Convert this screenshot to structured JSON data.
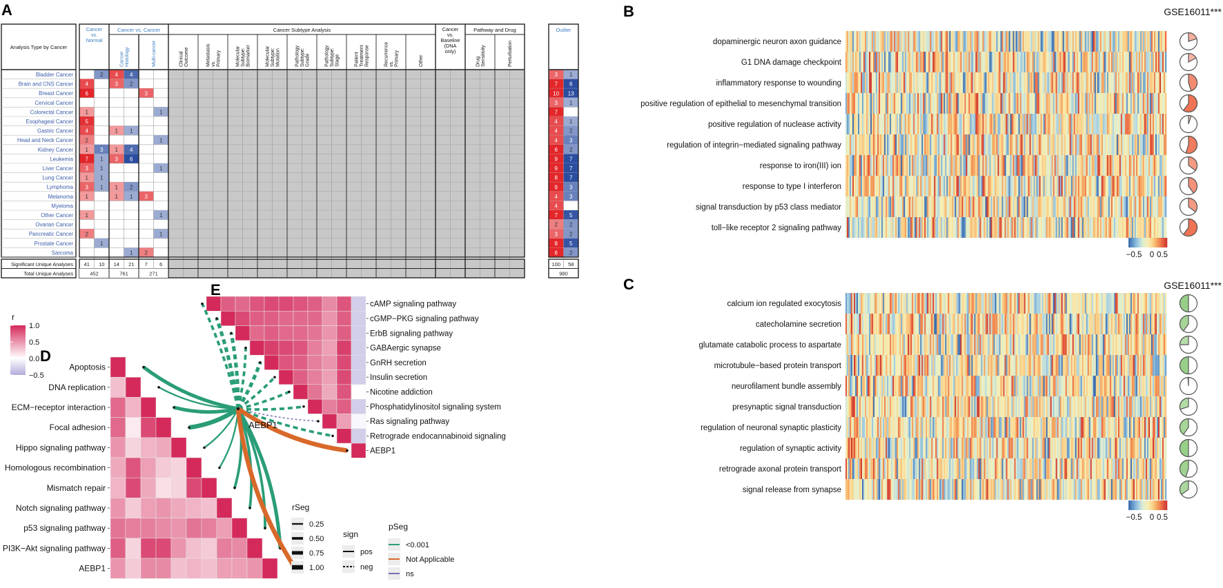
{
  "panel_labels": {
    "a": "A",
    "b": "B",
    "c": "C",
    "d": "D",
    "e": "E"
  },
  "chart_data": [
    {
      "panel": "A",
      "type": "table",
      "row_header": "Analysis Type by Cancer",
      "group_headers": {
        "cvn": "Cancer vs. Normal",
        "cvc": "Cancer vs. Cancer",
        "subtype": "Cancer Subtype Analysis",
        "baseline": "Cancer vs. Baseline (DNA only)",
        "pathway": "Pathway and Drug",
        "outlier": "Outlier"
      },
      "sub_headers": {
        "cvc": [
          "Cancer Histology",
          "Multi-cancer"
        ],
        "subtype": [
          "Clinical Outcome",
          "Metastasis vs. Primary",
          "Molecular Subtype: Biomarker",
          "Molecular Subtype: Mutation",
          "Pathology Subtype: Grade",
          "Pathology Subtype: Stage",
          "Patient Treatment Response",
          "Recurrence vs. Primary",
          "Other"
        ],
        "pathway": [
          "Drug Sensitivity",
          "Perturbation"
        ]
      },
      "rows": [
        {
          "cancer": "Bladder Cancer",
          "cvn": [
            null,
            2
          ],
          "histology": [
            4,
            4
          ],
          "multi": [
            null,
            null
          ],
          "outlier": [
            3,
            1
          ]
        },
        {
          "cancer": "Brain and CNS Cancer",
          "cvn": [
            4,
            null
          ],
          "histology": [
            3,
            2
          ],
          "multi": [
            null,
            null
          ],
          "outlier": [
            7,
            6
          ]
        },
        {
          "cancer": "Breast Cancer",
          "cvn": [
            6,
            null
          ],
          "histology": [
            null,
            null
          ],
          "multi": [
            3,
            null
          ],
          "outlier": [
            10,
            13
          ]
        },
        {
          "cancer": "Cervical Cancer",
          "cvn": [
            null,
            null
          ],
          "histology": [
            null,
            null
          ],
          "multi": [
            null,
            null
          ],
          "outlier": [
            3,
            1
          ]
        },
        {
          "cancer": "Colorectal Cancer",
          "cvn": [
            1,
            null
          ],
          "histology": [
            null,
            null
          ],
          "multi": [
            null,
            1
          ],
          "outlier": [
            7,
            null
          ]
        },
        {
          "cancer": "Esophageal Cancer",
          "cvn": [
            5,
            null
          ],
          "histology": [
            null,
            null
          ],
          "multi": [
            null,
            null
          ],
          "outlier": [
            4,
            1
          ]
        },
        {
          "cancer": "Gastric Cancer",
          "cvn": [
            4,
            null
          ],
          "histology": [
            1,
            1
          ],
          "multi": [
            null,
            null
          ],
          "outlier": [
            4,
            2
          ]
        },
        {
          "cancer": "Head and Neck Cancer",
          "cvn": [
            2,
            null
          ],
          "histology": [
            null,
            null
          ],
          "multi": [
            null,
            1
          ],
          "outlier": [
            4,
            3
          ]
        },
        {
          "cancer": "Kidney Cancer",
          "cvn": [
            1,
            3
          ],
          "histology": [
            1,
            4
          ],
          "multi": [
            null,
            null
          ],
          "outlier": [
            6,
            2
          ]
        },
        {
          "cancer": "Leukemia",
          "cvn": [
            7,
            1
          ],
          "histology": [
            3,
            6
          ],
          "multi": [
            null,
            null
          ],
          "outlier": [
            9,
            7
          ]
        },
        {
          "cancer": "Liver Cancer",
          "cvn": [
            3,
            1
          ],
          "histology": [
            null,
            null
          ],
          "multi": [
            null,
            1
          ],
          "outlier": [
            9,
            7
          ]
        },
        {
          "cancer": "Lung Cancer",
          "cvn": [
            1,
            1
          ],
          "histology": [
            null,
            null
          ],
          "multi": [
            null,
            null
          ],
          "outlier": [
            8,
            7
          ]
        },
        {
          "cancer": "Lymphoma",
          "cvn": [
            3,
            1
          ],
          "histology": [
            1,
            2
          ],
          "multi": [
            null,
            null
          ],
          "outlier": [
            9,
            3
          ]
        },
        {
          "cancer": "Melanoma",
          "cvn": [
            1,
            null
          ],
          "histology": [
            1,
            1
          ],
          "multi": [
            3,
            null
          ],
          "outlier": [
            4,
            3
          ]
        },
        {
          "cancer": "Myeloma",
          "cvn": [
            null,
            null
          ],
          "histology": [
            null,
            null
          ],
          "multi": [
            null,
            null
          ],
          "outlier": [
            4,
            null
          ]
        },
        {
          "cancer": "Other Cancer",
          "cvn": [
            1,
            null
          ],
          "histology": [
            null,
            null
          ],
          "multi": [
            null,
            1
          ],
          "outlier": [
            7,
            5
          ]
        },
        {
          "cancer": "Ovarian Cancer",
          "cvn": [
            null,
            null
          ],
          "histology": [
            null,
            null
          ],
          "multi": [
            null,
            null
          ],
          "outlier": [
            2,
            2
          ]
        },
        {
          "cancer": "Pancreatic Cancer",
          "cvn": [
            2,
            null
          ],
          "histology": [
            null,
            null
          ],
          "multi": [
            null,
            1
          ],
          "outlier": [
            3,
            2
          ]
        },
        {
          "cancer": "Prostate Cancer",
          "cvn": [
            null,
            1
          ],
          "histology": [
            null,
            null
          ],
          "multi": [
            null,
            null
          ],
          "outlier": [
            8,
            5
          ]
        },
        {
          "cancer": "Sarcoma",
          "cvn": [
            null,
            null
          ],
          "histology": [
            null,
            1
          ],
          "multi": [
            2,
            null
          ],
          "outlier": [
            6,
            2
          ]
        }
      ],
      "summary": {
        "sig_label": "Significant Unique Analyses",
        "total_label": "Total Unique Analyses",
        "sig": {
          "cvn": [
            41,
            10
          ],
          "histology": [
            14,
            21
          ],
          "multi": [
            7,
            6
          ],
          "outlier": [
            100,
            58
          ]
        },
        "total": {
          "cvn": "452",
          "histology": "761",
          "multi": "271",
          "outlier": "980"
        }
      },
      "colors": {
        "up": "#e3262a",
        "down": "#2b4da0",
        "cancer_label": "#3b5ca8",
        "blue_header": "#3a7cc0",
        "na": "#c8c8c8"
      }
    },
    {
      "panel": "B",
      "type": "heatmap",
      "dataset": "GSE16011***",
      "pathways": [
        "dopaminergic neuron axon guidance",
        "G1 DNA damage checkpoint",
        "inflammatory response to wounding",
        "positive regulation of epithelial to mesenchymal transition",
        "positive regulation of nuclease activity",
        "regulation of integrin−mediated signaling pathway",
        "response to iron(III) ion",
        "response to type I interferon",
        "signal transduction by p53 class mediator",
        "toll−like receptor 2 signaling pathway"
      ],
      "pie_fraction": [
        0.2,
        0.17,
        0.45,
        0.6,
        0.05,
        0.55,
        0.35,
        0.4,
        0.35,
        0.6
      ],
      "pie_color": "#ee7455",
      "colorbar": {
        "ticks": [
          "−0.5",
          "0",
          "0.5"
        ],
        "range": [
          -0.5,
          0.5
        ]
      }
    },
    {
      "panel": "C",
      "type": "heatmap",
      "dataset": "GSE16011***",
      "pathways": [
        "calcium ion regulated exocytosis",
        "catecholamine secretion",
        "glutamate catabolic process to aspartate",
        "microtubule−based protein transport",
        "neurofilament bundle assembly",
        "presynaptic signal transduction",
        "regulation of neuronal synaptic plasticity",
        "regulation of synaptic activity",
        "retrograde axonal protein transport",
        "signal release from synapse"
      ],
      "pie_fraction": [
        0.5,
        0.4,
        0.25,
        0.5,
        0.01,
        0.3,
        0.4,
        0.5,
        0.45,
        0.35
      ],
      "pie_color": "#8cc97a",
      "colorbar": {
        "ticks": [
          "−0.5",
          "0",
          "0.5"
        ],
        "range": [
          -0.5,
          0.5
        ]
      }
    },
    {
      "panel": "D",
      "type": "heatmap",
      "labels": [
        "Apoptosis",
        "DNA replication",
        "ECM−receptor interaction",
        "Focal adhesion",
        "Hippo signaling pathway",
        "Homologous recombination",
        "Mismatch repair",
        "Notch signaling pathway",
        "p53 signaling pathway",
        "PI3K−Akt signaling pathway",
        "AEBP1"
      ],
      "lower_triangle": [
        [
          1
        ],
        [
          0.3,
          1
        ],
        [
          0.7,
          0.35,
          1
        ],
        [
          0.7,
          0.1,
          0.85,
          1
        ],
        [
          0.5,
          0.2,
          0.35,
          0.4,
          1
        ],
        [
          0.4,
          0.8,
          0.45,
          0.25,
          0.2,
          1
        ],
        [
          0.35,
          0.85,
          0.4,
          0.15,
          0.2,
          0.85,
          1
        ],
        [
          0.5,
          0.25,
          0.45,
          0.5,
          0.4,
          0.35,
          0.3,
          1
        ],
        [
          0.65,
          0.6,
          0.6,
          0.55,
          0.5,
          0.65,
          0.6,
          0.45,
          1
        ],
        [
          0.75,
          0.2,
          0.85,
          0.85,
          0.5,
          0.3,
          0.25,
          0.6,
          0.55,
          1
        ],
        [
          0.5,
          0.25,
          0.55,
          0.55,
          0.3,
          0.35,
          0.3,
          0.45,
          0.45,
          0.5,
          1
        ]
      ]
    },
    {
      "panel": "E",
      "type": "heatmap",
      "labels": [
        "cAMP signaling pathway",
        "cGMP−PKG signaling pathway",
        "ErbB signaling pathway",
        "GABAergic synapse",
        "GnRH secretion",
        "Insulin secretion",
        "Nicotine addiction",
        "Phosphatidylinositol signaling system",
        "Ras signaling pathway",
        "Retrograde endocannabinoid signaling",
        "AEBP1"
      ],
      "upper_triangle": [
        [
          1,
          0.75,
          0.7,
          0.8,
          0.85,
          0.85,
          0.8,
          0.75,
          0.55,
          0.8,
          -0.3
        ],
        [
          1,
          0.85,
          0.75,
          0.75,
          0.7,
          0.7,
          0.7,
          0.5,
          0.75,
          -0.3
        ],
        [
          1,
          0.7,
          0.75,
          0.7,
          0.7,
          0.65,
          0.5,
          0.75,
          -0.3
        ],
        [
          1,
          0.9,
          0.85,
          0.8,
          0.6,
          0.45,
          0.9,
          -0.3
        ],
        [
          1,
          0.8,
          0.75,
          0.6,
          0.5,
          0.85,
          -0.3
        ],
        [
          1,
          0.75,
          0.6,
          0.45,
          0.85,
          -0.3
        ],
        [
          1,
          0.65,
          0.4,
          0.8,
          0.0
        ],
        [
          1,
          0.6,
          0.75,
          -0.3
        ],
        [
          1,
          0.45,
          -0.05
        ],
        [
          1,
          -0.3
        ],
        [
          1
        ]
      ]
    }
  ],
  "correlation_legend": {
    "title": "r",
    "ticks": [
      "1.0",
      "0.5",
      "0.0",
      "−0.5"
    ],
    "tick_values": [
      1.0,
      0.5,
      0.0,
      -0.5
    ],
    "range": [
      -0.5,
      1.0
    ],
    "high": "#d42a5b",
    "low": "#b4abdb"
  },
  "mantel": {
    "node": "AEBP1",
    "edges_D": [
      {
        "target": "Apoptosis",
        "r_seg": 0.75,
        "sign": "pos",
        "p_seg": "<0.001"
      },
      {
        "target": "DNA replication",
        "r_seg": 0.25,
        "sign": "pos",
        "p_seg": "<0.001"
      },
      {
        "target": "ECM−receptor interaction",
        "r_seg": 0.75,
        "sign": "pos",
        "p_seg": "<0.001"
      },
      {
        "target": "Focal adhesion",
        "r_seg": 1.0,
        "sign": "pos",
        "p_seg": "<0.001"
      },
      {
        "target": "Hippo signaling pathway",
        "r_seg": 0.25,
        "sign": "pos",
        "p_seg": "<0.001"
      },
      {
        "target": "Homologous recombination",
        "r_seg": 0.25,
        "sign": "pos",
        "p_seg": "<0.001"
      },
      {
        "target": "Mismatch repair",
        "r_seg": 0.5,
        "sign": "pos",
        "p_seg": "<0.001"
      },
      {
        "target": "Notch signaling pathway",
        "r_seg": 0.5,
        "sign": "pos",
        "p_seg": "<0.001"
      },
      {
        "target": "p53 signaling pathway",
        "r_seg": 0.5,
        "sign": "pos",
        "p_seg": "<0.001"
      },
      {
        "target": "PI3K−Akt signaling pathway",
        "r_seg": 0.75,
        "sign": "pos",
        "p_seg": "<0.001"
      },
      {
        "target": "AEBP1",
        "r_seg": 1.0,
        "sign": "pos",
        "p_seg": "Not Applicable"
      }
    ],
    "edges_E": [
      {
        "target": "cAMP signaling pathway",
        "r_seg": 0.5,
        "sign": "neg",
        "p_seg": "<0.001"
      },
      {
        "target": "cGMP−PKG signaling pathway",
        "r_seg": 0.75,
        "sign": "neg",
        "p_seg": "<0.001"
      },
      {
        "target": "ErbB signaling pathway",
        "r_seg": 0.75,
        "sign": "neg",
        "p_seg": "<0.001"
      },
      {
        "target": "GABAergic synapse",
        "r_seg": 0.5,
        "sign": "neg",
        "p_seg": "<0.001"
      },
      {
        "target": "GnRH secretion",
        "r_seg": 0.75,
        "sign": "neg",
        "p_seg": "<0.001"
      },
      {
        "target": "Insulin secretion",
        "r_seg": 0.5,
        "sign": "neg",
        "p_seg": "<0.001"
      },
      {
        "target": "Nicotine addiction",
        "r_seg": 0.5,
        "sign": "neg",
        "p_seg": "<0.001"
      },
      {
        "target": "Phosphatidylinositol signaling system",
        "r_seg": 0.5,
        "sign": "neg",
        "p_seg": "<0.001"
      },
      {
        "target": "Ras signaling pathway",
        "r_seg": 0.25,
        "sign": "neg",
        "p_seg": "ns"
      },
      {
        "target": "Retrograde endocannabinoid signaling",
        "r_seg": 0.5,
        "sign": "neg",
        "p_seg": "<0.001"
      },
      {
        "target": "AEBP1",
        "r_seg": 1.0,
        "sign": "pos",
        "p_seg": "Not Applicable"
      }
    ]
  },
  "legends": {
    "rSeg": {
      "title": "rSeg",
      "items": [
        "0.25",
        "0.50",
        "0.75",
        "1.00"
      ],
      "values": [
        0.25,
        0.5,
        0.75,
        1.0
      ]
    },
    "sign": {
      "title": "sign",
      "items": [
        "pos",
        "neg"
      ]
    },
    "pSeg": {
      "title": "pSeg",
      "items": [
        "<0.001",
        "Not Applicable",
        "ns"
      ],
      "colors": [
        "#2a9d78",
        "#d8692a",
        "#7b6fb0"
      ]
    }
  }
}
